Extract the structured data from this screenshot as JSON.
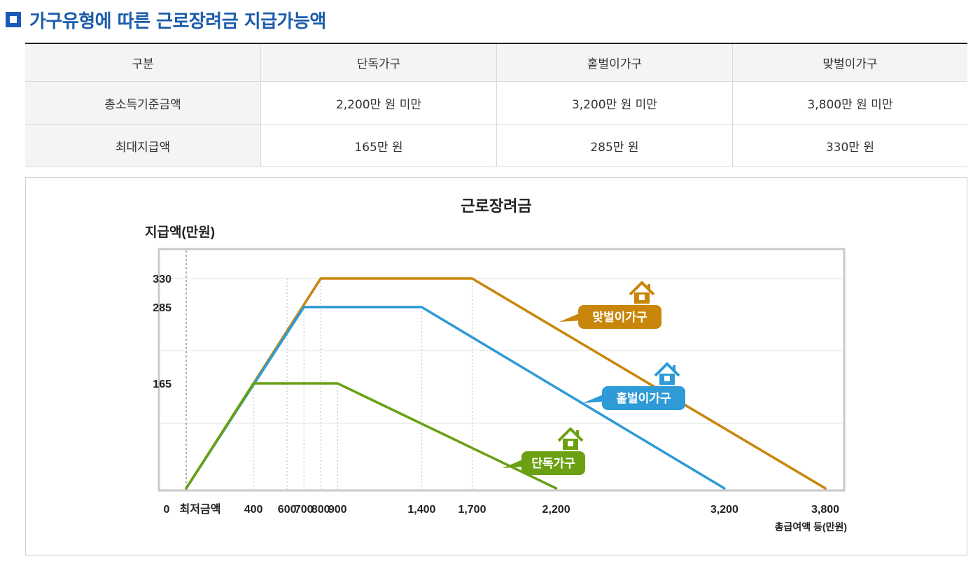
{
  "page": {
    "title": "가구유형에 따른 근로장려금 지급가능액"
  },
  "table": {
    "headers": [
      "구분",
      "단독가구",
      "홑벌이가구",
      "맞벌이가구"
    ],
    "rows": [
      {
        "label": "총소득기준금액",
        "values": [
          "2,200만 원 미만",
          "3,200만 원 미만",
          "3,800만 원 미만"
        ]
      },
      {
        "label": "최대지급액",
        "values": [
          "165만 원",
          "285만 원",
          "330만 원"
        ]
      }
    ]
  },
  "chart_data": {
    "type": "line",
    "title": "근로장려금",
    "ylabel": "지급액(만원)",
    "xlabel": "총급여액 등(만원)",
    "origin_label": "0",
    "min_wage_label": "최저금액",
    "xlim": [
      0,
      3800
    ],
    "ylim": [
      0,
      330
    ],
    "x_ticks": [
      400,
      600,
      700,
      800,
      900,
      1400,
      1700,
      2200,
      3200,
      3800
    ],
    "x_tick_labels": [
      "400",
      "600",
      "700",
      "800",
      "900",
      "1,400",
      "1,700",
      "2,200",
      "3,200",
      "3,800"
    ],
    "y_ticks": [
      165,
      285,
      330
    ],
    "y_tick_labels": [
      "165",
      "285",
      "330"
    ],
    "grid": true,
    "series": [
      {
        "name": "맞벌이가구",
        "color": "#c8860a",
        "icon": "house-icon",
        "points": [
          [
            0,
            0
          ],
          [
            800,
            330
          ],
          [
            1700,
            330
          ],
          [
            3800,
            0
          ]
        ]
      },
      {
        "name": "홑벌이가구",
        "color": "#2e9bd6",
        "icon": "house-icon",
        "points": [
          [
            0,
            0
          ],
          [
            700,
            285
          ],
          [
            1400,
            285
          ],
          [
            3200,
            0
          ]
        ]
      },
      {
        "name": "단독가구",
        "color": "#6aa012",
        "icon": "house-icon",
        "points": [
          [
            0,
            0
          ],
          [
            400,
            165
          ],
          [
            900,
            165
          ],
          [
            2200,
            0
          ]
        ]
      }
    ]
  }
}
